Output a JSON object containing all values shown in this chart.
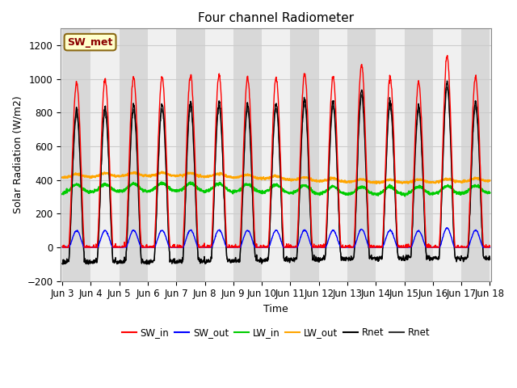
{
  "title": "Four channel Radiometer",
  "xlabel": "Time",
  "ylabel": "Solar Radiation (W/m2)",
  "ylim": [
    -200,
    1300
  ],
  "xtick_labels": [
    "Jun 3",
    "Jun 4",
    "Jun 5",
    "Jun 6",
    "Jun 7",
    "Jun 8",
    "Jun 9",
    "Jun 10",
    "Jun 11",
    "Jun 12",
    "Jun 13",
    "Jun 14",
    "Jun 15",
    "Jun 16",
    "Jun 17",
    "Jun 18"
  ],
  "annotation_text": "SW_met",
  "annotation_color": "#8B0000",
  "annotation_bg": "#ffffcc",
  "annotation_border": "#8B6914",
  "band_color_dark": "#d8d8d8",
  "band_color_light": "#f0f0f0",
  "plot_bg": "#ffffff",
  "grid_color": "#cccccc",
  "sw_in_color": "#ff0000",
  "sw_out_color": "#0000ff",
  "lw_in_color": "#00cc00",
  "lw_out_color": "#ffa500",
  "rnet1_color": "#000000",
  "rnet2_color": "#333333",
  "yticks": [
    -200,
    0,
    200,
    400,
    600,
    800,
    1000,
    1200
  ]
}
